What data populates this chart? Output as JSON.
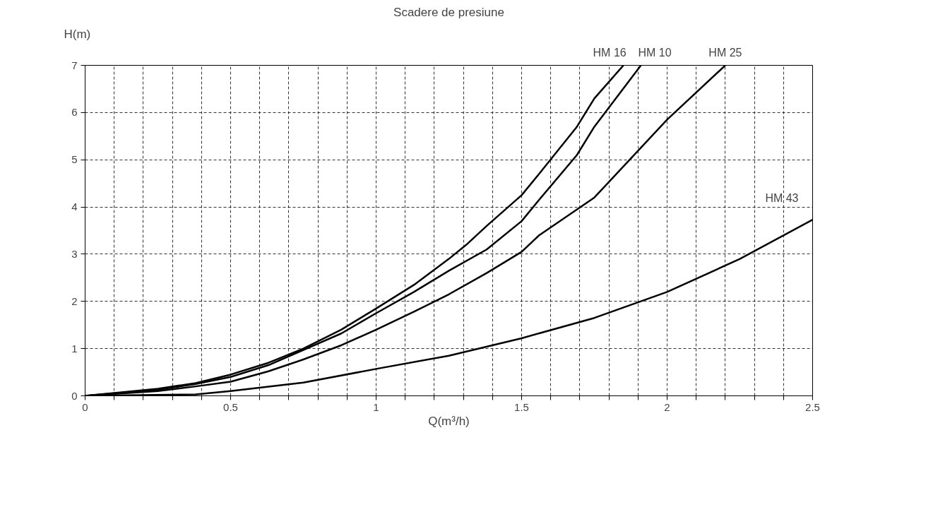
{
  "chart_data": {
    "type": "line",
    "title": "Scadere de presiune",
    "xlabel": "Q(m³/h)",
    "ylabel": "H(m)",
    "xlim": [
      0,
      2.5
    ],
    "ylim": [
      0,
      7
    ],
    "xticks": [
      0,
      {
        "value": 0.1,
        "label": null
      },
      {
        "value": 0.2,
        "label": null
      },
      {
        "value": 0.3,
        "label": null
      },
      {
        "value": 0.4,
        "label": null
      },
      0.5,
      {
        "value": 0.6,
        "label": null
      },
      {
        "value": 0.7,
        "label": null
      },
      {
        "value": 0.8,
        "label": null
      },
      {
        "value": 0.9,
        "label": null
      },
      1,
      {
        "value": 1.1,
        "label": null
      },
      {
        "value": 1.2,
        "label": null
      },
      {
        "value": 1.3,
        "label": null
      },
      {
        "value": 1.4,
        "label": null
      },
      1.5,
      {
        "value": 1.6,
        "label": null
      },
      {
        "value": 1.7,
        "label": null
      },
      {
        "value": 1.8,
        "label": null
      },
      {
        "value": 1.9,
        "label": null
      },
      2,
      {
        "value": 2.1,
        "label": null
      },
      {
        "value": 2.2,
        "label": null
      },
      {
        "value": 2.3,
        "label": null
      },
      {
        "value": 2.4,
        "label": null
      },
      2.5
    ],
    "yticks": [
      0,
      1,
      2,
      3,
      4,
      5,
      6,
      7
    ],
    "grid": true,
    "line_style": "solid",
    "marker": "none",
    "series": [
      {
        "name": "HM 16",
        "color": "#000000",
        "x": [
          0,
          0.25,
          0.38,
          0.5,
          0.63,
          0.75,
          0.88,
          1.0,
          1.13,
          1.25,
          1.31,
          1.38,
          1.5,
          1.56,
          1.69,
          1.75,
          1.85
        ],
        "values": [
          0,
          0.15,
          0.27,
          0.45,
          0.7,
          1.0,
          1.4,
          1.85,
          2.35,
          2.9,
          3.2,
          3.6,
          4.25,
          4.7,
          5.7,
          6.3,
          7.0
        ]
      },
      {
        "name": "HM 10",
        "color": "#000000",
        "x": [
          0,
          0.25,
          0.38,
          0.5,
          0.63,
          0.75,
          0.88,
          1.0,
          1.13,
          1.25,
          1.38,
          1.5,
          1.56,
          1.69,
          1.75,
          1.91
        ],
        "values": [
          0,
          0.13,
          0.25,
          0.4,
          0.65,
          0.97,
          1.32,
          1.75,
          2.2,
          2.65,
          3.1,
          3.7,
          4.15,
          5.1,
          5.7,
          7.0
        ]
      },
      {
        "name": "HM 25",
        "color": "#000000",
        "x": [
          0,
          0.25,
          0.38,
          0.5,
          0.63,
          0.75,
          0.88,
          1.0,
          1.13,
          1.25,
          1.38,
          1.5,
          1.56,
          1.75,
          2.0,
          2.2
        ],
        "values": [
          0,
          0.1,
          0.2,
          0.3,
          0.52,
          0.77,
          1.07,
          1.4,
          1.78,
          2.15,
          2.6,
          3.05,
          3.4,
          4.2,
          5.85,
          7.0
        ]
      },
      {
        "name": "HM 43",
        "color": "#000000",
        "x": [
          0,
          0.38,
          0.5,
          0.75,
          1.0,
          1.25,
          1.5,
          1.75,
          2.0,
          2.25,
          2.5
        ],
        "values": [
          0,
          0.03,
          0.1,
          0.28,
          0.57,
          0.85,
          1.22,
          1.65,
          2.2,
          2.9,
          3.73
        ]
      }
    ]
  }
}
